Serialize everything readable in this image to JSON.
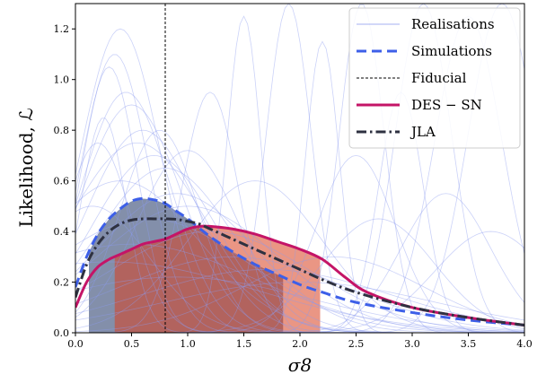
{
  "chart_data": {
    "type": "line",
    "xlabel": "σ8",
    "ylabel": "Likelihood, ℒ",
    "xlim": [
      0.0,
      4.0
    ],
    "ylim": [
      0.0,
      1.3
    ],
    "x_ticks": [
      "0.0",
      "0.5",
      "1.0",
      "1.5",
      "2.0",
      "2.5",
      "3.0",
      "3.5",
      "4.0"
    ],
    "y_ticks": [
      "0.0",
      "0.2",
      "0.4",
      "0.6",
      "0.8",
      "1.0",
      "1.2"
    ],
    "fiducial_x": 0.8,
    "legend": {
      "placement": "top-right",
      "entries": [
        {
          "label": "Realisations",
          "color": "#6b7fe8",
          "style": "thin"
        },
        {
          "label": "Simulations",
          "color": "#3d5fe8",
          "style": "dashed"
        },
        {
          "label": "Fiducial",
          "color": "#000000",
          "style": "fine-dashed"
        },
        {
          "label": "DES − SN",
          "color": "#c41467",
          "style": "solid"
        },
        {
          "label": "JLA",
          "color": "#2e3140",
          "style": "dash-dot"
        }
      ]
    },
    "series": [
      {
        "name": "Simulations",
        "color": "#3d5fe8",
        "x": [
          0.0,
          0.1,
          0.2,
          0.3,
          0.4,
          0.5,
          0.6,
          0.7,
          0.8,
          0.9,
          1.0,
          1.2,
          1.4,
          1.6,
          1.8,
          2.0,
          2.2,
          2.5,
          3.0,
          3.5,
          4.0
        ],
        "y": [
          0.18,
          0.3,
          0.39,
          0.45,
          0.49,
          0.52,
          0.53,
          0.525,
          0.51,
          0.48,
          0.45,
          0.38,
          0.32,
          0.27,
          0.23,
          0.19,
          0.16,
          0.12,
          0.08,
          0.05,
          0.03
        ]
      },
      {
        "name": "DES − SN",
        "color": "#c41467",
        "x": [
          0.0,
          0.1,
          0.2,
          0.3,
          0.4,
          0.5,
          0.6,
          0.7,
          0.8,
          0.9,
          1.0,
          1.1,
          1.2,
          1.4,
          1.6,
          1.8,
          2.0,
          2.2,
          2.4,
          2.6,
          3.0,
          3.5,
          4.0
        ],
        "y": [
          0.1,
          0.2,
          0.26,
          0.29,
          0.31,
          0.33,
          0.35,
          0.36,
          0.37,
          0.39,
          0.41,
          0.42,
          0.42,
          0.41,
          0.39,
          0.36,
          0.33,
          0.29,
          0.22,
          0.16,
          0.1,
          0.06,
          0.03
        ]
      },
      {
        "name": "JLA",
        "color": "#2e3140",
        "x": [
          0.0,
          0.1,
          0.2,
          0.3,
          0.4,
          0.5,
          0.6,
          0.7,
          0.8,
          0.9,
          1.0,
          1.1,
          1.2,
          1.4,
          1.6,
          1.8,
          2.0,
          2.2,
          2.5,
          3.0,
          3.5,
          4.0
        ],
        "y": [
          0.14,
          0.27,
          0.35,
          0.4,
          0.43,
          0.445,
          0.45,
          0.45,
          0.45,
          0.448,
          0.44,
          0.43,
          0.41,
          0.37,
          0.33,
          0.29,
          0.25,
          0.21,
          0.16,
          0.1,
          0.06,
          0.03
        ]
      }
    ],
    "shaded_regions": [
      {
        "curve": "Simulations",
        "x_from": 0.12,
        "x_to": 1.85,
        "color": "#5a6a8e"
      },
      {
        "curve": "DES − SN",
        "x_from": 0.35,
        "x_to": 2.18,
        "color": "#d9401f"
      }
    ],
    "realisations": {
      "color": "#8c9cf0",
      "peaks": [
        {
          "mu": 0.4,
          "sigma": 0.35,
          "amp": 1.2
        },
        {
          "mu": 0.35,
          "sigma": 0.3,
          "amp": 1.1
        },
        {
          "mu": 0.3,
          "sigma": 0.25,
          "amp": 1.05
        },
        {
          "mu": 0.45,
          "sigma": 0.4,
          "amp": 0.95
        },
        {
          "mu": 0.5,
          "sigma": 0.45,
          "amp": 0.9
        },
        {
          "mu": 0.25,
          "sigma": 0.2,
          "amp": 0.85
        },
        {
          "mu": 0.6,
          "sigma": 0.5,
          "amp": 0.8
        },
        {
          "mu": 0.55,
          "sigma": 0.6,
          "amp": 0.75
        },
        {
          "mu": 0.7,
          "sigma": 0.55,
          "amp": 0.7
        },
        {
          "mu": 0.8,
          "sigma": 0.6,
          "amp": 0.65
        },
        {
          "mu": 0.4,
          "sigma": 0.7,
          "amp": 0.6
        },
        {
          "mu": 0.9,
          "sigma": 0.7,
          "amp": 0.55
        },
        {
          "mu": 1.0,
          "sigma": 0.8,
          "amp": 0.5
        },
        {
          "mu": 0.65,
          "sigma": 0.9,
          "amp": 0.45
        },
        {
          "mu": 1.2,
          "sigma": 0.9,
          "amp": 0.4
        },
        {
          "mu": 0.5,
          "sigma": 1.1,
          "amp": 0.35
        },
        {
          "mu": 1.4,
          "sigma": 1.0,
          "amp": 0.3
        },
        {
          "mu": 0.3,
          "sigma": 1.3,
          "amp": 0.28
        },
        {
          "mu": 1.7,
          "sigma": 1.1,
          "amp": 0.25
        },
        {
          "mu": 2.0,
          "sigma": 1.2,
          "amp": 0.2
        },
        {
          "mu": 1.5,
          "sigma": 0.15,
          "amp": 1.25
        },
        {
          "mu": 1.9,
          "sigma": 0.2,
          "amp": 1.3
        },
        {
          "mu": 2.2,
          "sigma": 0.15,
          "amp": 1.15
        },
        {
          "mu": 2.55,
          "sigma": 0.2,
          "amp": 1.3
        },
        {
          "mu": 3.1,
          "sigma": 0.25,
          "amp": 1.3
        },
        {
          "mu": 2.9,
          "sigma": 0.2,
          "amp": 0.95
        },
        {
          "mu": 3.5,
          "sigma": 0.3,
          "amp": 1.25
        },
        {
          "mu": 3.8,
          "sigma": 0.3,
          "amp": 1.3
        },
        {
          "mu": 1.2,
          "sigma": 0.25,
          "amp": 0.95
        },
        {
          "mu": 2.5,
          "sigma": 0.35,
          "amp": 0.7
        },
        {
          "mu": 3.3,
          "sigma": 0.4,
          "amp": 0.55
        },
        {
          "mu": 0.2,
          "sigma": 0.3,
          "amp": 0.75
        },
        {
          "mu": 0.75,
          "sigma": 0.35,
          "amp": 0.8
        },
        {
          "mu": 1.0,
          "sigma": 0.45,
          "amp": 0.72
        },
        {
          "mu": 0.15,
          "sigma": 0.5,
          "amp": 0.5
        },
        {
          "mu": 2.7,
          "sigma": 0.5,
          "amp": 0.45
        },
        {
          "mu": 1.6,
          "sigma": 0.6,
          "amp": 0.6
        },
        {
          "mu": 3.7,
          "sigma": 0.5,
          "amp": 0.4
        },
        {
          "mu": 0.9,
          "sigma": 1.2,
          "amp": 0.22
        },
        {
          "mu": 2.3,
          "sigma": 0.8,
          "amp": 0.3
        }
      ]
    }
  }
}
